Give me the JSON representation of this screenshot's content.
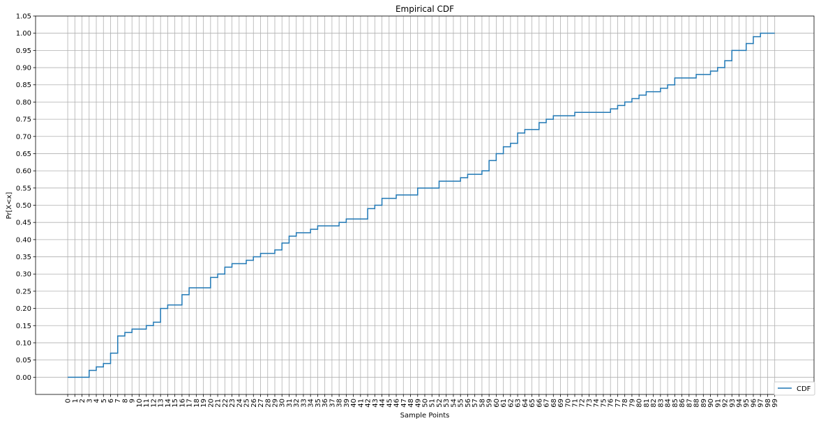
{
  "chart_data": {
    "type": "line",
    "drawstyle": "steps-post",
    "title": "Empirical CDF",
    "xlabel": "Sample Points",
    "ylabel": "Pr[X<x]",
    "xlim": [
      -4.5,
      104.5
    ],
    "ylim": [
      -0.05,
      1.05
    ],
    "x_ticks": [
      0,
      1,
      2,
      3,
      4,
      5,
      6,
      7,
      8,
      9,
      10,
      11,
      12,
      13,
      14,
      15,
      16,
      17,
      18,
      19,
      20,
      21,
      22,
      23,
      24,
      25,
      26,
      27,
      28,
      29,
      30,
      31,
      32,
      33,
      34,
      35,
      36,
      37,
      38,
      39,
      40,
      41,
      42,
      43,
      44,
      45,
      46,
      47,
      48,
      49,
      50,
      51,
      52,
      53,
      54,
      55,
      56,
      57,
      58,
      59,
      60,
      61,
      62,
      63,
      64,
      65,
      66,
      67,
      68,
      69,
      70,
      71,
      72,
      73,
      74,
      75,
      76,
      77,
      78,
      79,
      80,
      81,
      82,
      83,
      84,
      85,
      86,
      87,
      88,
      89,
      90,
      91,
      92,
      93,
      94,
      95,
      96,
      97,
      98,
      99
    ],
    "y_ticks": [
      "0.00",
      "0.05",
      "0.10",
      "0.15",
      "0.20",
      "0.25",
      "0.30",
      "0.35",
      "0.40",
      "0.45",
      "0.50",
      "0.55",
      "0.60",
      "0.65",
      "0.70",
      "0.75",
      "0.80",
      "0.85",
      "0.90",
      "0.95",
      "1.00",
      "1.05"
    ],
    "grid": true,
    "legend_position": "lower-right",
    "color": "#1f77b4",
    "series": [
      {
        "name": "CDF",
        "x": [
          0,
          1,
          2,
          3,
          4,
          5,
          6,
          7,
          8,
          9,
          10,
          11,
          12,
          13,
          14,
          15,
          16,
          17,
          18,
          19,
          20,
          21,
          22,
          23,
          24,
          25,
          26,
          27,
          28,
          29,
          30,
          31,
          32,
          33,
          34,
          35,
          36,
          37,
          38,
          39,
          40,
          41,
          42,
          43,
          44,
          45,
          46,
          47,
          48,
          49,
          50,
          51,
          52,
          53,
          54,
          55,
          56,
          57,
          58,
          59,
          60,
          61,
          62,
          63,
          64,
          65,
          66,
          67,
          68,
          69,
          70,
          71,
          72,
          73,
          74,
          75,
          76,
          77,
          78,
          79,
          80,
          81,
          82,
          83,
          84,
          85,
          86,
          87,
          88,
          89,
          90,
          91,
          92,
          93,
          94,
          95,
          96,
          97,
          98,
          99
        ],
        "values": [
          0.0,
          0.0,
          0.0,
          0.02,
          0.03,
          0.04,
          0.07,
          0.12,
          0.13,
          0.14,
          0.14,
          0.15,
          0.16,
          0.2,
          0.21,
          0.21,
          0.24,
          0.26,
          0.26,
          0.26,
          0.29,
          0.3,
          0.32,
          0.33,
          0.33,
          0.34,
          0.35,
          0.36,
          0.36,
          0.37,
          0.39,
          0.41,
          0.42,
          0.42,
          0.43,
          0.44,
          0.44,
          0.44,
          0.45,
          0.46,
          0.46,
          0.46,
          0.49,
          0.5,
          0.52,
          0.52,
          0.53,
          0.53,
          0.53,
          0.55,
          0.55,
          0.55,
          0.57,
          0.57,
          0.57,
          0.58,
          0.59,
          0.59,
          0.6,
          0.63,
          0.65,
          0.67,
          0.68,
          0.71,
          0.72,
          0.72,
          0.74,
          0.75,
          0.76,
          0.76,
          0.76,
          0.77,
          0.77,
          0.77,
          0.77,
          0.77,
          0.78,
          0.79,
          0.8,
          0.81,
          0.82,
          0.83,
          0.83,
          0.84,
          0.85,
          0.87,
          0.87,
          0.87,
          0.88,
          0.88,
          0.89,
          0.9,
          0.92,
          0.95,
          0.95,
          0.97,
          0.99,
          1.0,
          1.0,
          1.0
        ]
      }
    ]
  }
}
